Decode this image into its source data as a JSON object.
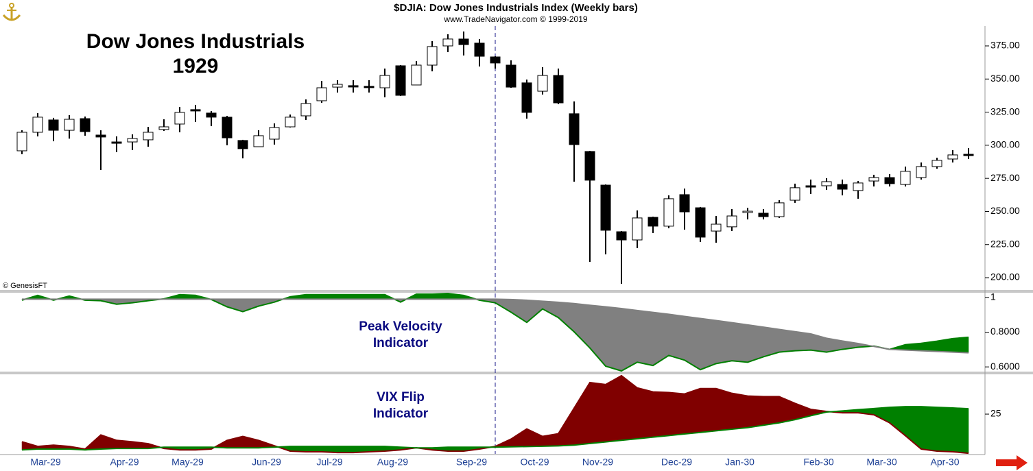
{
  "chart_data": [
    {
      "type": "candlestick",
      "title": "$DJIA:  Dow Jones Industrials Index  (Weekly bars)",
      "subtitle": "www.TradeNavigator.com © 1999-2019",
      "annotation": [
        "Dow Jones Industrials",
        "1929"
      ],
      "credit": "© GenesisFT",
      "categories": [
        null,
        "Mar-29",
        null,
        null,
        null,
        null,
        "Apr-29",
        null,
        null,
        null,
        "May-29",
        null,
        null,
        null,
        null,
        "Jun-29",
        null,
        null,
        null,
        "Jul-29",
        null,
        null,
        null,
        "Aug-29",
        null,
        null,
        null,
        null,
        "Sep-29",
        null,
        null,
        null,
        "Oct-29",
        null,
        null,
        null,
        "Nov-29",
        null,
        null,
        null,
        null,
        "Dec-29",
        null,
        null,
        null,
        "Jan-30",
        null,
        null,
        null,
        null,
        "Feb-30",
        null,
        null,
        null,
        "Mar-30",
        null,
        null,
        null,
        "Apr-30",
        null,
        null
      ],
      "open": [
        295.8,
        309.8,
        319.1,
        311.3,
        320.1,
        307.7,
        302.5,
        302.5,
        304.1,
        311.9,
        316.0,
        326.9,
        324.3,
        321.2,
        303.6,
        298.9,
        304.6,
        313.9,
        322.2,
        333.6,
        343.9,
        345.0,
        344.5,
        343.4,
        360.0,
        345.5,
        360.5,
        375.0,
        380.2,
        377.1,
        366.7,
        360.5,
        347.1,
        340.8,
        352.7,
        323.8,
        295.3,
        269.9,
        234.7,
        228.5,
        245.6,
        238.9,
        262.7,
        252.8,
        235.2,
        238.4,
        249.2,
        248.7,
        246.1,
        258.5,
        269.4,
        269.4,
        270.4,
        265.8,
        273.0,
        275.6,
        270.4,
        275.6,
        283.9,
        289.6,
        293.2
      ],
      "high": [
        311.3,
        324.3,
        320.7,
        322.7,
        321.7,
        311.3,
        306.7,
        308.2,
        313.9,
        319.6,
        328.9,
        330.5,
        325.8,
        322.2,
        304.1,
        311.3,
        316.5,
        323.2,
        334.6,
        348.6,
        349.1,
        349.1,
        349.1,
        357.9,
        360.5,
        363.6,
        378.6,
        383.8,
        385.9,
        380.2,
        367.2,
        364.1,
        349.6,
        359.0,
        357.9,
        333.1,
        295.8,
        270.4,
        235.2,
        250.8,
        246.1,
        262.2,
        267.3,
        253.4,
        246.6,
        251.8,
        252.8,
        251.8,
        258.5,
        271.0,
        274.1,
        275.1,
        274.1,
        273.0,
        277.7,
        278.2,
        283.9,
        287.0,
        290.6,
        296.3,
        297.9
      ],
      "low": [
        293.2,
        306.7,
        303.0,
        305.0,
        307.2,
        281.3,
        294.8,
        296.3,
        298.9,
        310.8,
        309.8,
        317.5,
        314.4,
        300.0,
        290.1,
        298.9,
        300.5,
        313.4,
        319.1,
        332.0,
        339.8,
        339.8,
        339.8,
        336.2,
        337.2,
        345.5,
        355.8,
        370.3,
        367.8,
        359.5,
        357.9,
        343.4,
        320.1,
        338.3,
        331.0,
        272.5,
        211.9,
        217.6,
        195.4,
        222.3,
        233.7,
        237.3,
        236.3,
        226.9,
        226.4,
        235.2,
        244.0,
        244.0,
        245.1,
        256.5,
        263.2,
        266.3,
        262.2,
        259.6,
        268.9,
        268.9,
        268.9,
        274.1,
        282.3,
        287.0,
        289.6
      ],
      "close": [
        309.8,
        321.2,
        311.3,
        319.6,
        310.3,
        306.2,
        302.0,
        305.1,
        309.8,
        313.9,
        324.8,
        326.3,
        321.2,
        305.6,
        297.4,
        307.2,
        313.4,
        321.2,
        331.5,
        343.4,
        346.0,
        344.7,
        344.2,
        352.7,
        337.7,
        360.5,
        374.5,
        380.2,
        376.0,
        367.2,
        362.1,
        343.9,
        324.8,
        352.7,
        332.0,
        300.5,
        273.6,
        235.8,
        228.5,
        245.1,
        238.9,
        259.6,
        249.7,
        230.6,
        240.4,
        246.6,
        250.2,
        246.1,
        256.5,
        267.9,
        269.1,
        272.5,
        266.8,
        271.5,
        275.6,
        271.0,
        280.3,
        283.9,
        288.6,
        292.7,
        292.9
      ],
      "up_color": "#ffffff",
      "down_color": "#000000",
      "ylim": [
        190.7,
        390
      ],
      "yticks": [
        {
          "value": 200,
          "label": "200.00"
        },
        {
          "value": 225,
          "label": "225.00"
        },
        {
          "value": 250,
          "label": "250.00"
        },
        {
          "value": 275,
          "label": "275.00"
        },
        {
          "value": 300,
          "label": "300.00"
        },
        {
          "value": 325,
          "label": "325.00"
        },
        {
          "value": 350,
          "label": "350.00"
        },
        {
          "value": 375,
          "label": "375.00"
        }
      ]
    },
    {
      "type": "line",
      "fill_between": true,
      "label": [
        "Peak Velocity",
        "Indicator"
      ],
      "series": [
        {
          "color": "#008000",
          "values": [
            0.984,
            1.012,
            0.984,
            1.008,
            0.984,
            0.981,
            0.961,
            0.969,
            0.981,
            0.992,
            1.016,
            1.012,
            0.988,
            0.946,
            0.918,
            0.95,
            0.973,
            1.004,
            1.016,
            1.016,
            1.016,
            1.016,
            1.016,
            1.016,
            0.973,
            1.019,
            1.019,
            1.023,
            1.012,
            0.984,
            0.969,
            0.915,
            0.856,
            0.934,
            0.884,
            0.802,
            0.709,
            0.604,
            0.577,
            0.627,
            0.608,
            0.666,
            0.639,
            0.584,
            0.619,
            0.635,
            0.627,
            0.658,
            0.685,
            0.693,
            0.697,
            0.685,
            0.701,
            0.713,
            0.72,
            0.701,
            0.728,
            0.736,
            0.748,
            0.763,
            0.771
          ]
        },
        {
          "color": "#808080",
          "values": [
            0.99,
            0.99,
            0.99,
            0.99,
            0.99,
            0.99,
            0.99,
            0.99,
            0.99,
            0.99,
            0.99,
            0.99,
            0.99,
            0.99,
            0.99,
            0.99,
            0.99,
            0.99,
            0.99,
            0.99,
            0.99,
            0.99,
            0.99,
            0.99,
            0.99,
            0.99,
            0.99,
            0.99,
            0.99,
            0.99,
            0.99,
            0.988,
            0.984,
            0.978,
            0.972,
            0.965,
            0.955,
            0.946,
            0.936,
            0.925,
            0.914,
            0.903,
            0.891,
            0.879,
            0.867,
            0.855,
            0.842,
            0.829,
            0.816,
            0.803,
            0.79,
            0.765,
            0.749,
            0.735,
            0.718,
            0.701,
            0.697,
            0.693,
            0.689,
            0.685,
            0.681
          ]
        }
      ],
      "ylim": [
        0.573,
        1.027
      ],
      "yticks": [
        {
          "value": 0.6,
          "label": "0.6000"
        },
        {
          "value": 0.8,
          "label": "0.8000"
        },
        1
      ]
    },
    {
      "type": "line",
      "fill_between": true,
      "label": [
        "VIX Flip",
        "Indicator"
      ],
      "series": [
        {
          "color": "#800000",
          "values": [
            7.6,
            4.7,
            5.5,
            4.7,
            3.0,
            11.9,
            8.5,
            7.6,
            6.4,
            3.4,
            2.5,
            2.5,
            3.0,
            8.5,
            11.0,
            8.5,
            5.1,
            1.7,
            1.3,
            1.3,
            0.8,
            0.8,
            1.3,
            1.7,
            2.5,
            3.8,
            2.5,
            1.7,
            1.7,
            3.0,
            4.7,
            9.3,
            15.7,
            11.0,
            12.7,
            28.8,
            44.9,
            43.6,
            49.2,
            41.5,
            39.0,
            38.6,
            37.7,
            41.1,
            41.1,
            38.1,
            36.4,
            36.0,
            36.0,
            31.8,
            28.0,
            26.7,
            25.8,
            25.8,
            24.6,
            19.5,
            11.4,
            3.0,
            1.7,
            1.3,
            0.4
          ]
        },
        {
          "color": "#008000",
          "values": [
            2.5,
            3.0,
            3.0,
            3.0,
            2.5,
            3.0,
            3.4,
            3.4,
            3.4,
            4.2,
            4.2,
            4.2,
            4.2,
            3.8,
            3.8,
            3.8,
            4.2,
            4.7,
            4.7,
            4.7,
            4.7,
            4.7,
            4.7,
            4.7,
            4.2,
            3.8,
            3.8,
            4.2,
            4.2,
            4.2,
            4.2,
            4.4,
            4.6,
            4.8,
            5.0,
            5.5,
            6.5,
            7.5,
            8.5,
            9.5,
            10.5,
            11.5,
            12.5,
            13.5,
            14.5,
            15.5,
            16.5,
            18.0,
            19.5,
            21.5,
            24.0,
            26.3,
            27.0,
            27.8,
            28.5,
            29.3,
            29.7,
            29.7,
            29.3,
            28.9,
            28.4
          ]
        }
      ],
      "ylim": [
        0,
        49.6
      ],
      "yticks": [
        25
      ]
    }
  ]
}
